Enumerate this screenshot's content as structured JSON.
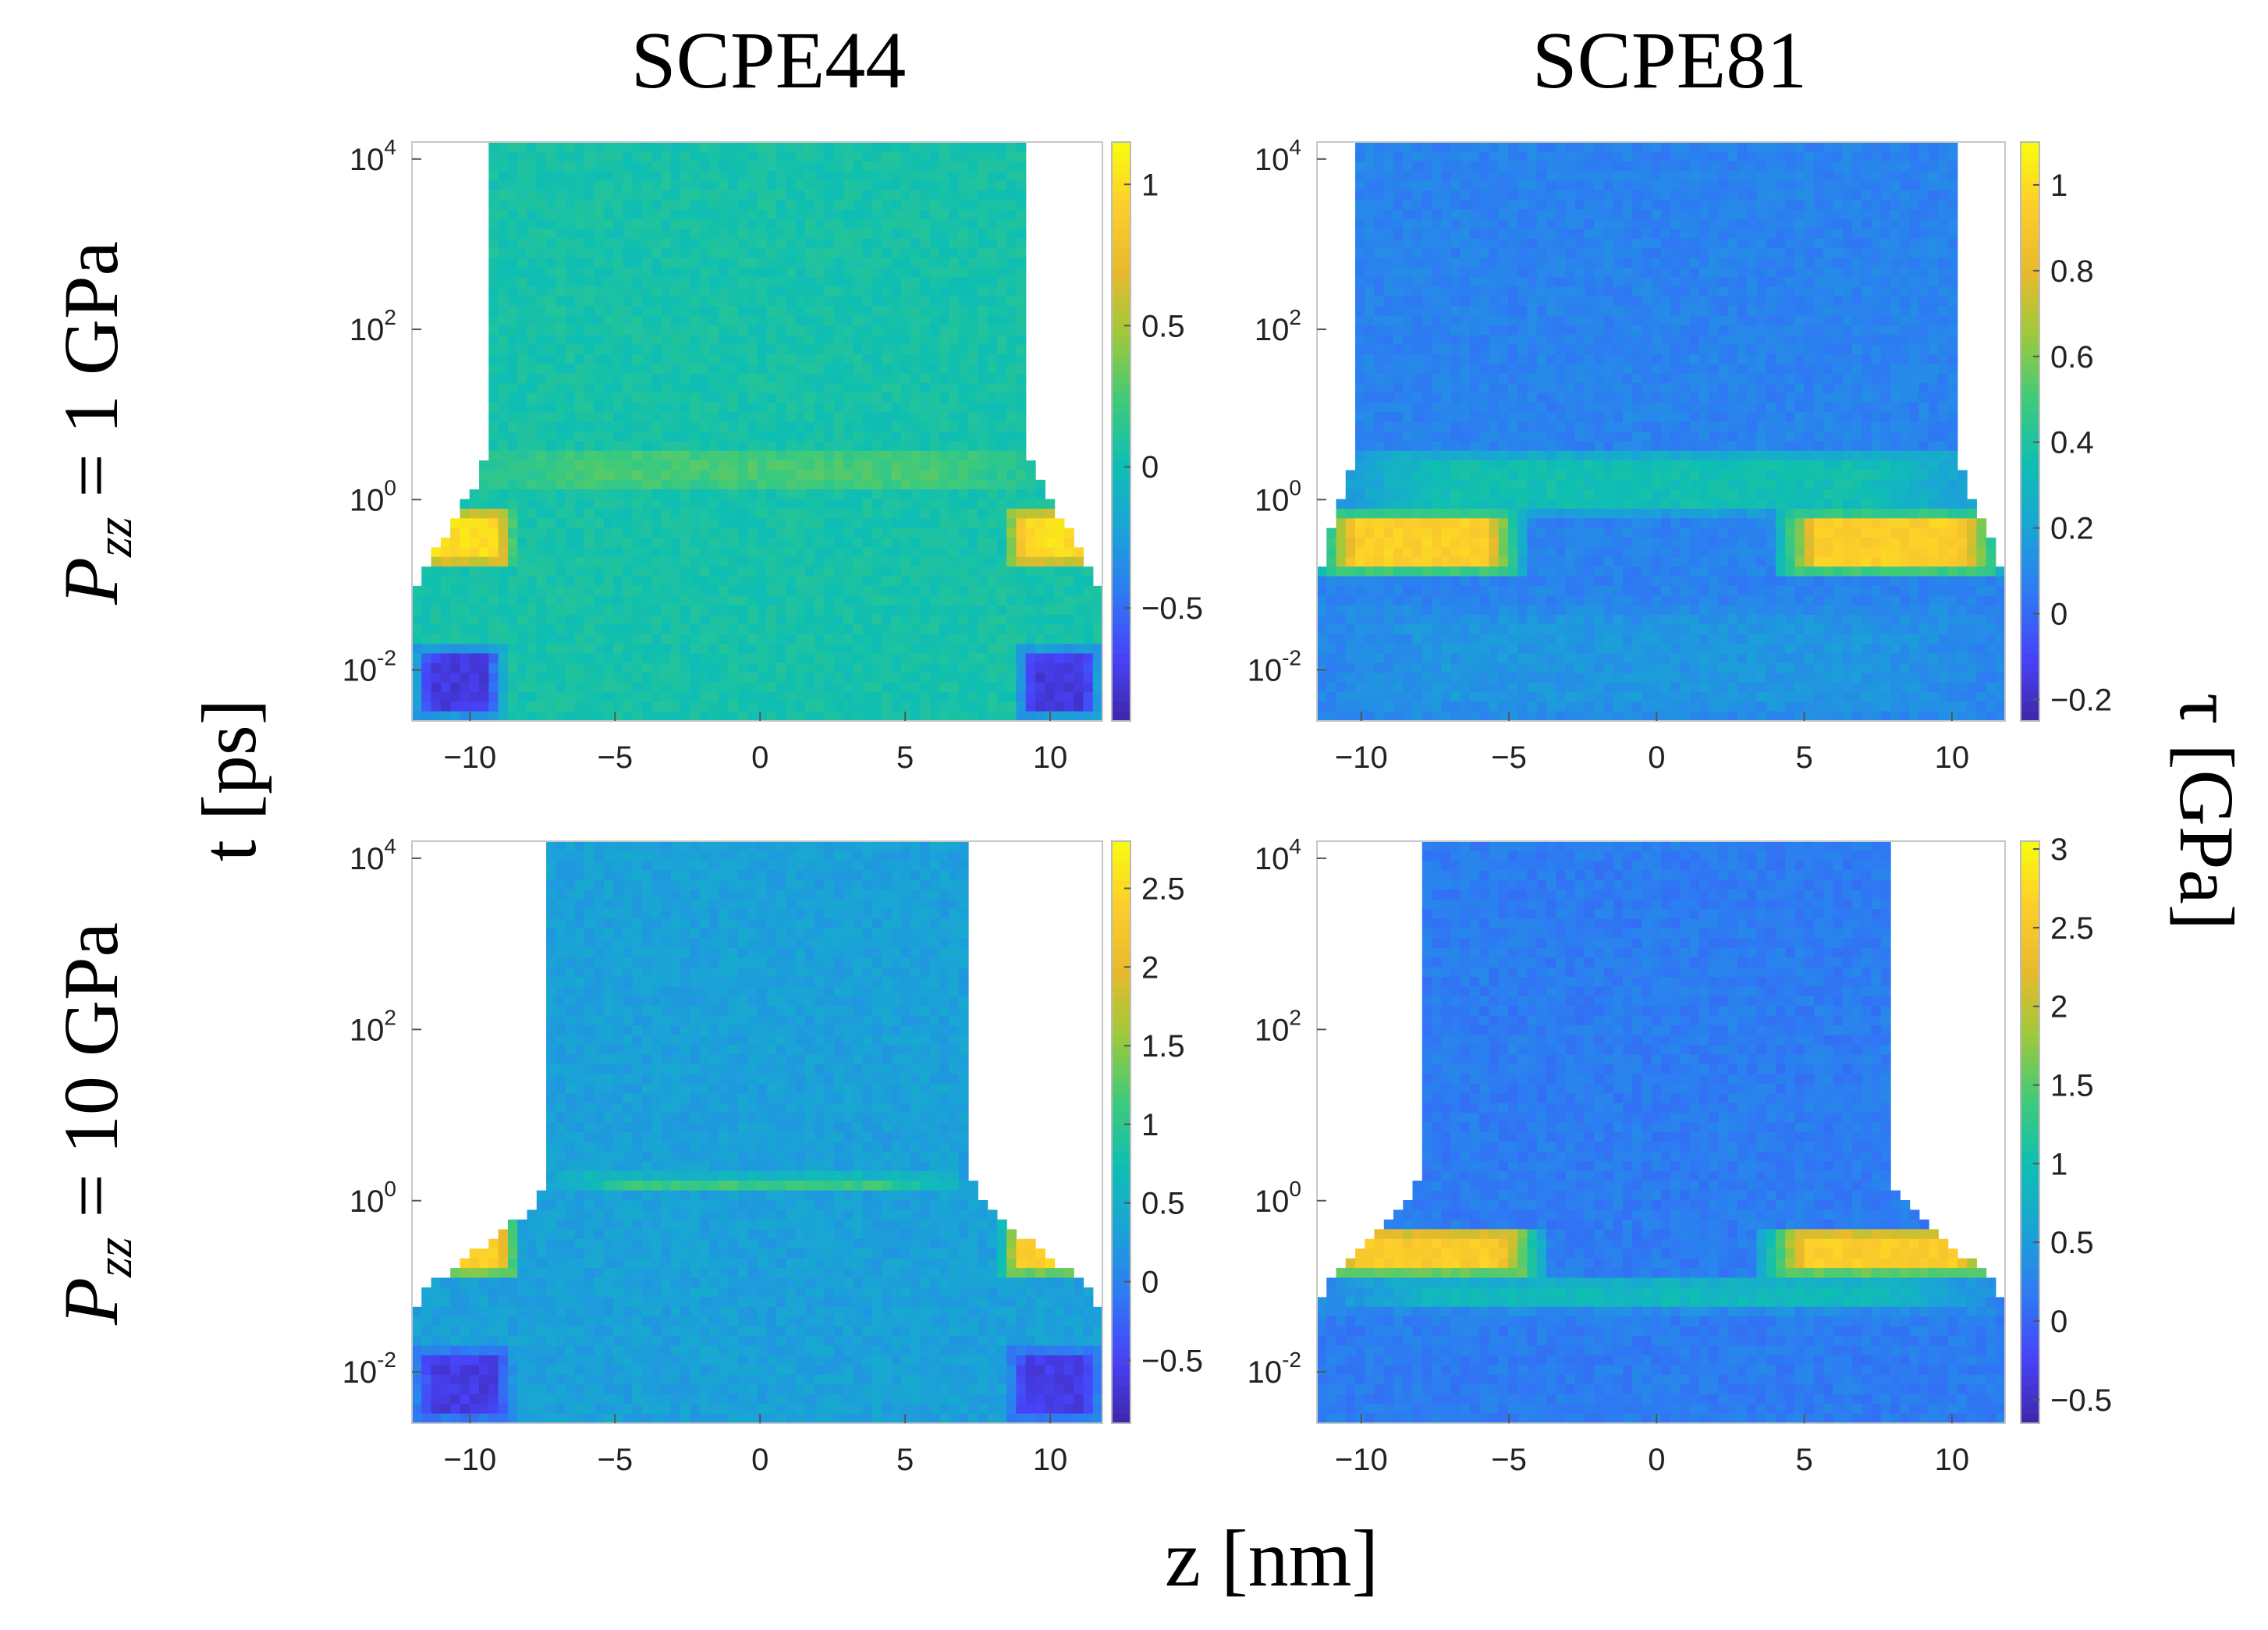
{
  "figure": {
    "column_titles": [
      "SCPE44",
      "SCPE81"
    ],
    "row_labels": [
      {
        "var": "P",
        "sub": "zz",
        "rest": " = 1 GPa"
      },
      {
        "var": "P",
        "sub": "zz",
        "rest": " = 10 GPa"
      }
    ],
    "shared_xlabel": "z [nm]",
    "shared_ylabel": "t [ps]",
    "shared_colorbar_label": "τ [GPa]"
  },
  "colormap": {
    "name": "parula",
    "stops": [
      "#3e26a8",
      "#4743f8",
      "#2e7af3",
      "#1aa4d6",
      "#0fbfb2",
      "#3fca7a",
      "#9dc93c",
      "#e8ba2c",
      "#fdcd2c",
      "#f9fb0e"
    ]
  },
  "chart_data": [
    {
      "type": "heatmap",
      "title": "SCPE44",
      "panel": "SCPE44, Pzz = 1 GPa",
      "x": {
        "label": "z [nm]",
        "range": [
          -12,
          11.8
        ],
        "ticks": [
          -10,
          -5,
          0,
          5,
          10
        ],
        "tick_labels": [
          "−10",
          "−5",
          "0",
          "5",
          "10"
        ]
      },
      "y": {
        "label": "t [ps]",
        "scale": "log",
        "range_log10": [
          -2.6,
          4.2
        ],
        "ticks_log10": [
          -2,
          0,
          2,
          4
        ]
      },
      "colorbar": {
        "range": [
          -0.9,
          1.15
        ],
        "ticks": [
          -0.5,
          0,
          0.5,
          1
        ],
        "tick_labels": [
          "−0.5",
          "0",
          "0.5",
          "1"
        ]
      },
      "envelope": {
        "z_min_at_late_time": -9.3,
        "z_max_at_late_time": 9.2,
        "z_min_at_early_time": -12,
        "z_max_at_early_time": 11.8,
        "narrowing_log10t": [
          -1.4,
          0.8
        ]
      },
      "background_value": 0.05,
      "features": [
        {
          "z_range": [
            -12,
            -8.5
          ],
          "log10t_range": [
            -0.8,
            -0.1
          ],
          "value": 1.0
        },
        {
          "z_range": [
            8.5,
            11.8
          ],
          "log10t_range": [
            -0.8,
            -0.1
          ],
          "value": 1.0
        },
        {
          "z_range": [
            -12,
            -8.8
          ],
          "log10t_range": [
            -2.6,
            -1.7
          ],
          "value": -0.75
        },
        {
          "z_range": [
            8.8,
            11.8
          ],
          "log10t_range": [
            -2.6,
            -1.7
          ],
          "value": -0.75
        },
        {
          "z_range": [
            -10,
            10
          ],
          "log10t_range": [
            0.1,
            0.6
          ],
          "value": 0.25
        }
      ]
    },
    {
      "type": "heatmap",
      "title": "SCPE81",
      "panel": "SCPE81, Pzz = 1 GPa",
      "x": {
        "label": "z [nm]",
        "range": [
          -11.5,
          11.8
        ],
        "ticks": [
          -10,
          -5,
          0,
          5,
          10
        ],
        "tick_labels": [
          "−10",
          "−5",
          "0",
          "5",
          "10"
        ]
      },
      "y": {
        "label": "t [ps]",
        "scale": "log",
        "range_log10": [
          -2.6,
          4.2
        ],
        "ticks_log10": [
          -2,
          0,
          2,
          4
        ]
      },
      "colorbar": {
        "range": [
          -0.25,
          1.1
        ],
        "ticks": [
          -0.2,
          0,
          0.2,
          0.4,
          0.6,
          0.8,
          1
        ],
        "tick_labels": [
          "−0.2",
          "0",
          "0.2",
          "0.4",
          "0.6",
          "0.8",
          "1"
        ]
      },
      "envelope": {
        "z_min_at_late_time": -10.2,
        "z_max_at_late_time": 10.1,
        "z_min_at_early_time": -11.5,
        "z_max_at_early_time": 11.8,
        "narrowing_log10t": [
          -1.2,
          0.8
        ]
      },
      "background_value": 0.08,
      "features": [
        {
          "z_range": [
            -11.5,
            -4.5
          ],
          "log10t_range": [
            -0.9,
            -0.1
          ],
          "value": 0.95
        },
        {
          "z_range": [
            4,
            11.8
          ],
          "log10t_range": [
            -0.9,
            -0.1
          ],
          "value": 0.95
        },
        {
          "z_range": [
            -11.5,
            11.8
          ],
          "log10t_range": [
            -0.2,
            0.6
          ],
          "value": 0.35
        },
        {
          "z_range": [
            -11.5,
            11.8
          ],
          "log10t_range": [
            -2.6,
            -1.2
          ],
          "value": 0.15
        }
      ]
    },
    {
      "type": "heatmap",
      "title": "SCPE44",
      "panel": "SCPE44, Pzz = 10 GPa",
      "x": {
        "label": "z [nm]",
        "range": [
          -12,
          11.8
        ],
        "ticks": [
          -10,
          -5,
          0,
          5,
          10
        ],
        "tick_labels": [
          "−10",
          "−5",
          "0",
          "5",
          "10"
        ]
      },
      "y": {
        "label": "t [ps]",
        "scale": "log",
        "range_log10": [
          -2.6,
          4.2
        ],
        "ticks_log10": [
          -2,
          0,
          2,
          4
        ]
      },
      "colorbar": {
        "range": [
          -0.9,
          2.8
        ],
        "ticks": [
          -0.5,
          0,
          0.5,
          1,
          1.5,
          2,
          2.5
        ],
        "tick_labels": [
          "−0.5",
          "0",
          "0.5",
          "1",
          "1.5",
          "2",
          "2.5"
        ]
      },
      "envelope": {
        "z_min_at_late_time": -7.3,
        "z_max_at_late_time": 7.3,
        "z_min_at_early_time": -12,
        "z_max_at_early_time": 11.8,
        "narrowing_log10t": [
          -1.4,
          0.3
        ]
      },
      "background_value": 0.3,
      "features": [
        {
          "z_range": [
            -12,
            -8.3
          ],
          "log10t_range": [
            -0.9,
            -0.2
          ],
          "value": 2.4
        },
        {
          "z_range": [
            8.3,
            11.8
          ],
          "log10t_range": [
            -0.9,
            -0.2
          ],
          "value": 2.4
        },
        {
          "z_range": [
            -12,
            -8.5
          ],
          "log10t_range": [
            -2.6,
            -1.7
          ],
          "value": -0.6
        },
        {
          "z_range": [
            8.5,
            11.8
          ],
          "log10t_range": [
            -2.6,
            -1.7
          ],
          "value": -0.6
        },
        {
          "z_range": [
            -7,
            7
          ],
          "log10t_range": [
            0.1,
            0.3
          ],
          "value": 1.1
        }
      ]
    },
    {
      "type": "heatmap",
      "title": "SCPE81",
      "panel": "SCPE81, Pzz = 10 GPa",
      "x": {
        "label": "z [nm]",
        "range": [
          -11.5,
          11.8
        ],
        "ticks": [
          -10,
          -5,
          0,
          5,
          10
        ],
        "tick_labels": [
          "−10",
          "−5",
          "0",
          "5",
          "10"
        ]
      },
      "y": {
        "label": "t [ps]",
        "scale": "log",
        "range_log10": [
          -2.6,
          4.2
        ],
        "ticks_log10": [
          -2,
          0,
          2,
          4
        ]
      },
      "colorbar": {
        "range": [
          -0.65,
          3.05
        ],
        "ticks": [
          -0.5,
          0,
          0.5,
          1,
          1.5,
          2,
          2.5,
          3
        ],
        "tick_labels": [
          "−0.5",
          "0",
          "0.5",
          "1",
          "1.5",
          "2",
          "2.5",
          "3"
        ]
      },
      "envelope": {
        "z_min_at_late_time": -8.1,
        "z_max_at_late_time": 8,
        "z_min_at_early_time": -11.5,
        "z_max_at_early_time": 11.8,
        "narrowing_log10t": [
          -1.3,
          0.3
        ]
      },
      "background_value": 0.2,
      "features": [
        {
          "z_range": [
            -11.5,
            -3.8
          ],
          "log10t_range": [
            -0.9,
            -0.3
          ],
          "value": 2.6
        },
        {
          "z_range": [
            3.5,
            11.8
          ],
          "log10t_range": [
            -0.9,
            -0.3
          ],
          "value": 2.6
        },
        {
          "z_range": [
            -11.5,
            11.8
          ],
          "log10t_range": [
            -1.3,
            -0.9
          ],
          "value": 0.9
        }
      ]
    }
  ]
}
